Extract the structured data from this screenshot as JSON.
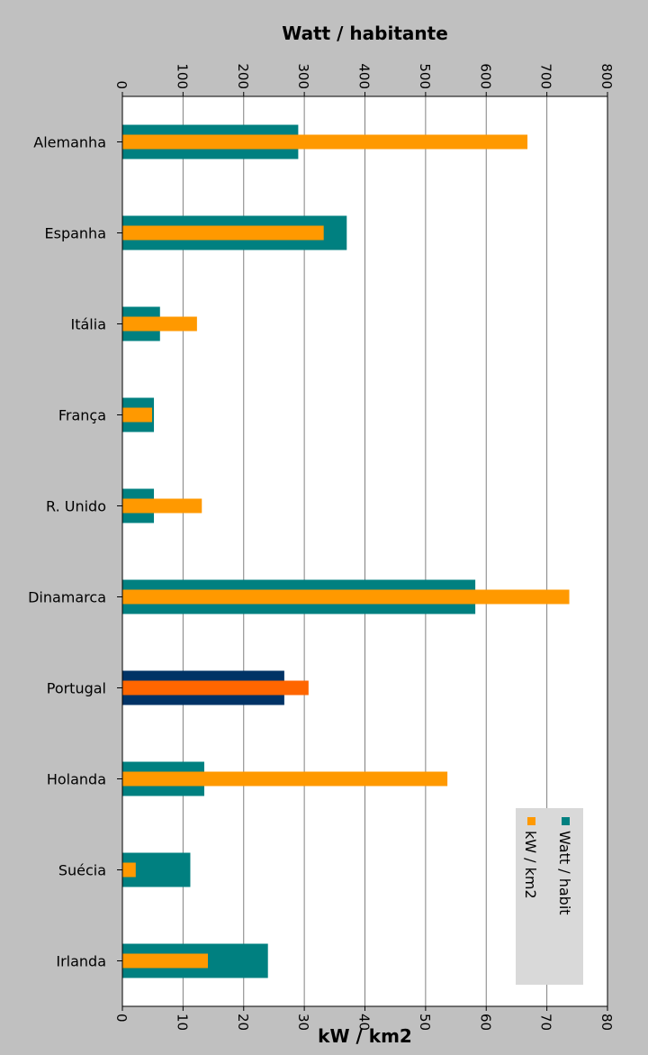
{
  "chart_data": {
    "type": "bar",
    "orientation": "horizontal",
    "categories": [
      "Alemanha",
      "Espanha",
      "Itália",
      "França",
      "R. Unido",
      "Dinamarca",
      "Portugal",
      "Holanda",
      "Suécia",
      "Irlanda"
    ],
    "highlight_category": "Portugal",
    "series": [
      {
        "name": "Watt / habit",
        "axis": "top",
        "color": "#008080",
        "highlight_color": "#003366",
        "values": [
          290,
          370,
          62,
          52,
          52,
          582,
          267,
          135,
          112,
          240
        ]
      },
      {
        "name": "kW / km2",
        "axis": "bottom",
        "color": "#ff9900",
        "highlight_color": "#ff6600",
        "values": [
          66.8,
          33.2,
          12.3,
          4.9,
          13.1,
          73.7,
          30.7,
          53.6,
          2.2,
          14.1
        ]
      }
    ],
    "top_axis": {
      "label": "Watt / habitante",
      "range": [
        0,
        800
      ],
      "ticks": [
        "0",
        "100",
        "200",
        "300",
        "400",
        "500",
        "600",
        "700",
        "800"
      ]
    },
    "bottom_axis": {
      "label": "kW / km2",
      "range": [
        0,
        80
      ],
      "ticks": [
        "0",
        "10",
        "20",
        "30",
        "40",
        "50",
        "60",
        "70",
        "80"
      ]
    },
    "grid": true,
    "legend": {
      "position": "bottom-right",
      "rotated": true
    }
  }
}
